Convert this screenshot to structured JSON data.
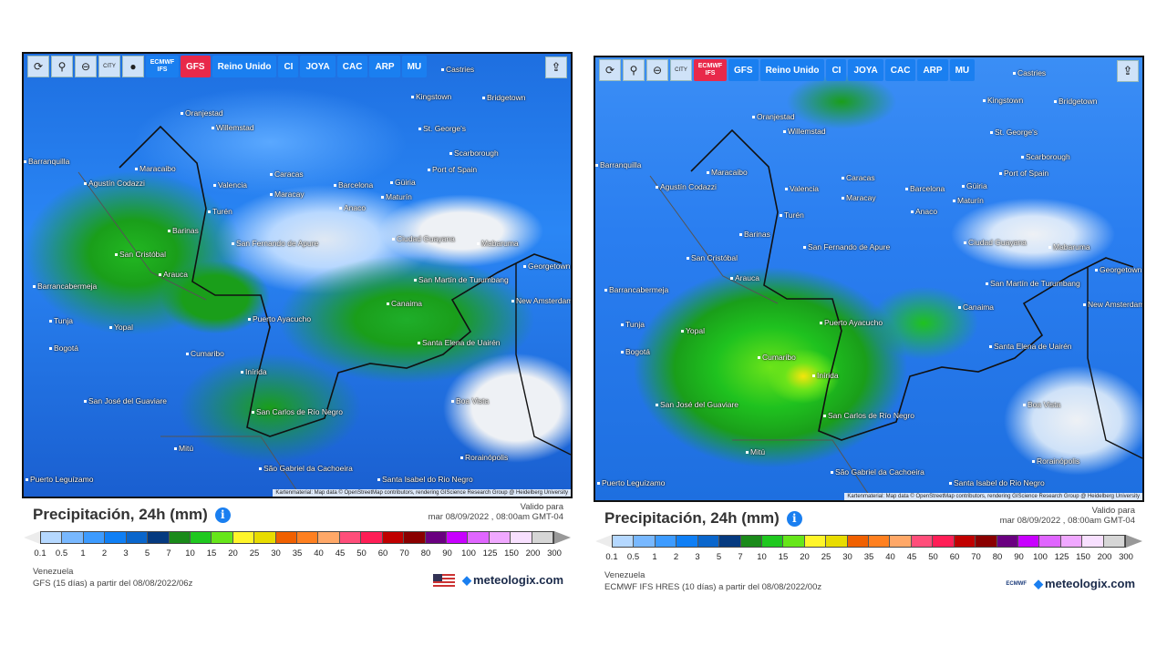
{
  "panels": [
    {
      "toolbar": {
        "buttons": [
          "refresh-icon",
          "location-pin-icon",
          "zoom-out-icon",
          "CITY",
          "balloon-icon"
        ],
        "models": [
          "ECMWF IFS",
          "GFS",
          "Reino Unido",
          "CI",
          "JOYA",
          "CAC",
          "ARP",
          "MU"
        ],
        "active_model": "GFS"
      },
      "legend": {
        "title": "Precipitación, 24h (mm)",
        "valid_label": "Valido para",
        "valid_date": "mar 08/09/2022 , 08:00am GMT-04",
        "region": "Venezuela",
        "model_info": "GFS (15 días) a partir del 08/08/2022/06z",
        "logo": "meteologix.com",
        "flag": "usa-flag"
      }
    },
    {
      "toolbar": {
        "buttons": [
          "refresh-icon",
          "location-pin-icon",
          "zoom-out-icon",
          "CITY"
        ],
        "models": [
          "ECMWF IFS",
          "GFS",
          "Reino Unido",
          "CI",
          "JOYA",
          "CAC",
          "ARP",
          "MU"
        ],
        "active_model": "ECMWF IFS"
      },
      "legend": {
        "title": "Precipitación, 24h (mm)",
        "valid_label": "Valido para",
        "valid_date": "mar 08/09/2022 , 08:00am GMT-04",
        "region": "Venezuela",
        "model_info": "ECMWF IFS HRES (10 días) a partir del 08/08/2022/00z",
        "logo": "meteologix.com",
        "provider_logo": "ECMWF"
      }
    }
  ],
  "cities": [
    "Castries",
    "Kingstown",
    "Bridgetown",
    "Oranjestad",
    "Willemstad",
    "St. George's",
    "Scarborough",
    "Port of Spain",
    "Barranquilla",
    "Maracaibo",
    "Agustín Codazzi",
    "Caracas",
    "Valencia",
    "Barcelona",
    "Güiria",
    "Maracay",
    "Maturín",
    "Anaco",
    "Turén",
    "Barinas",
    "Ciudad Guayana",
    "Mabaruma",
    "San Fernando de Apure",
    "San Cristóbal",
    "Arauca",
    "Barrancabermeja",
    "San Martín de Turumbang",
    "Georgetown",
    "New Amsterdam",
    "Canaima",
    "Puerto Ayacucho",
    "Tunja",
    "Yopal",
    "Santa Elena de Uairén",
    "Bogotá",
    "Cumaribo",
    "Inírida",
    "Boa Vista",
    "San José del Guaviare",
    "San Carlos de Río Negro",
    "Mitú",
    "Rorainópolis",
    "São Gabriel da Cachoeira",
    "Santa Isabel do Rio Negro",
    "Puerto Leguízamo"
  ],
  "attribution": "Kartenmaterial: Map data © OpenStreetMap contributors, rendering GIScience Research Group @ Heidelberg University",
  "scale": {
    "ticks": [
      "0.1",
      "0.5",
      "1",
      "2",
      "3",
      "5",
      "7",
      "10",
      "15",
      "20",
      "25",
      "30",
      "35",
      "40",
      "45",
      "50",
      "60",
      "70",
      "80",
      "90",
      "100",
      "125",
      "150",
      "200",
      "300"
    ],
    "colors": [
      "#b5d8ff",
      "#78b8ff",
      "#3d9bff",
      "#0f7ff5",
      "#0a66cc",
      "#053a80",
      "#1a8a1a",
      "#1fc81f",
      "#66e61a",
      "#fff52a",
      "#e8dc00",
      "#f06000",
      "#ff8020",
      "#ffa868",
      "#ff4e7a",
      "#ff1e56",
      "#c00000",
      "#8a0000",
      "#6a0080",
      "#c800ff",
      "#e066ff",
      "#f0a8ff",
      "#f8e0ff",
      "#d6d6d6"
    ],
    "below_color": "#ececec",
    "above_color": "#999999"
  }
}
